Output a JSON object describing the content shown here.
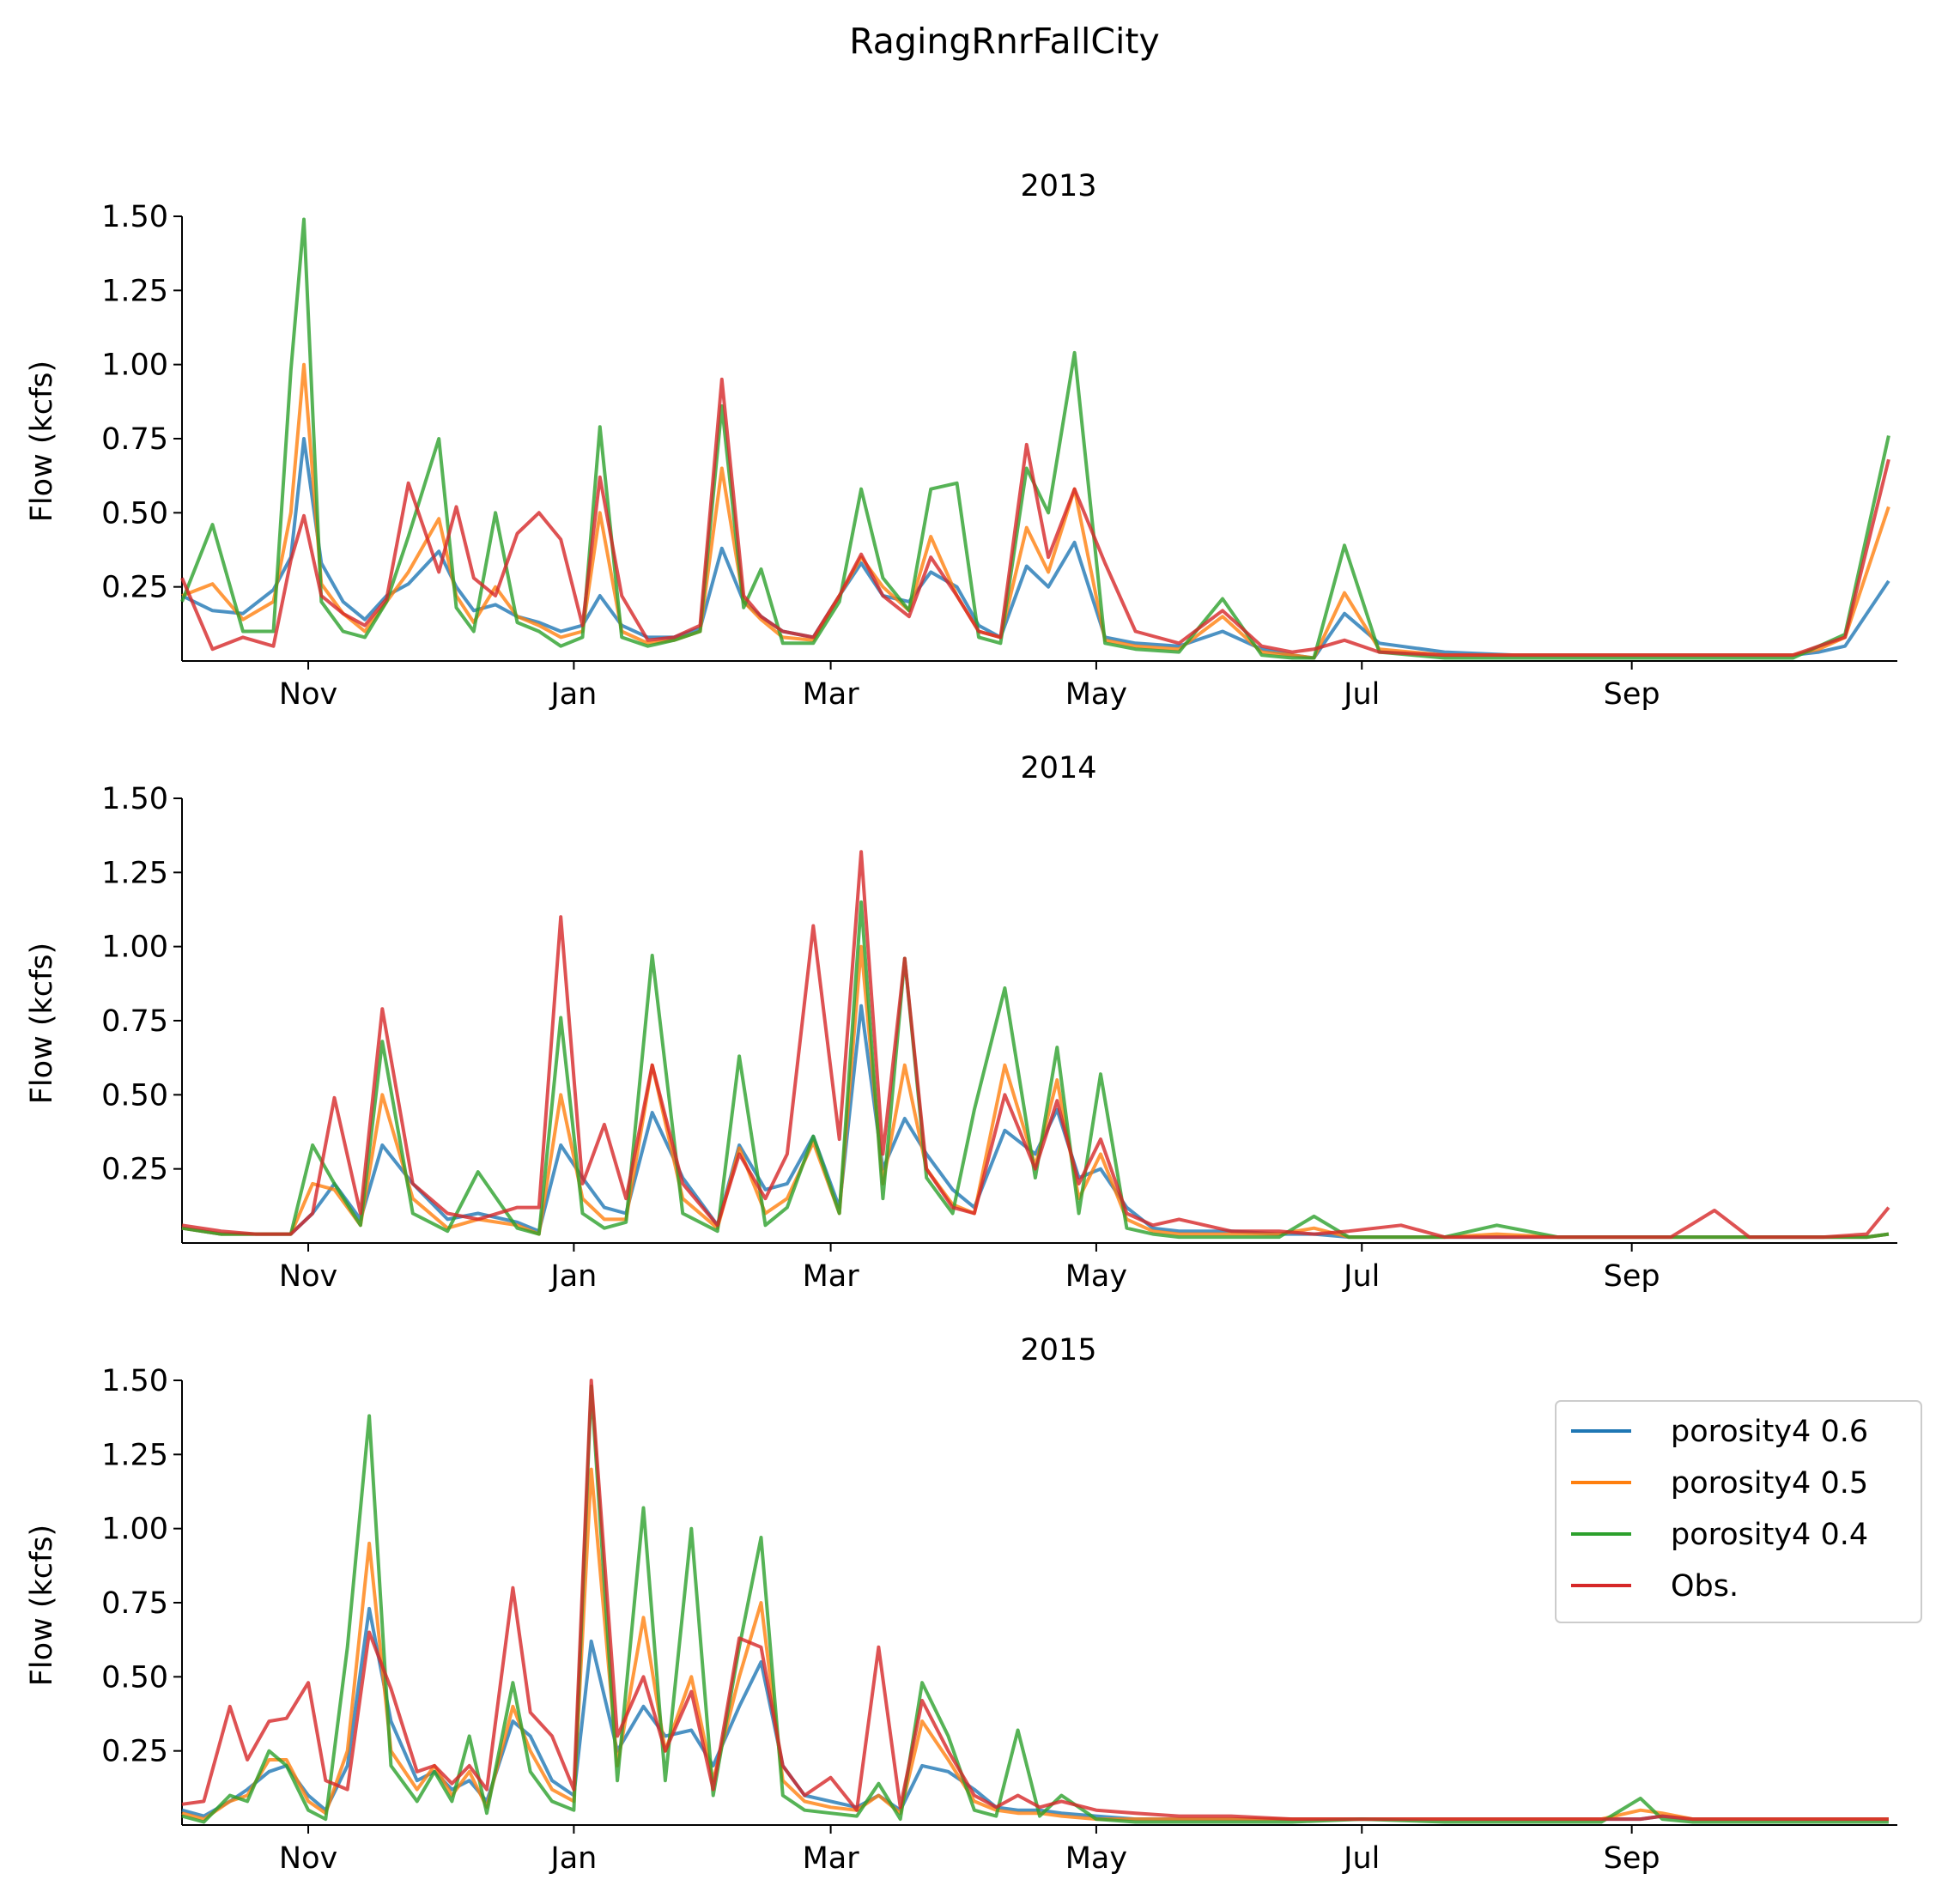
{
  "chart_data": {
    "type": "line",
    "title": "RagingRnrFallCity",
    "ylabel": "Flow (kcfs)",
    "xlabel": "",
    "grid": false,
    "legend": "right",
    "legend_panel": 2,
    "ylim": [
      0.0,
      1.5
    ],
    "yticks": [
      0.25,
      0.5,
      0.75,
      1.0,
      1.25,
      1.5
    ],
    "ytick_labels": [
      "0.25",
      "0.50",
      "0.75",
      "1.00",
      "1.25",
      "1.50"
    ],
    "xlim": [
      "Oct 3",
      "Oct 30"
    ],
    "xtick_labels": [
      "Nov",
      "Jan",
      "Mar",
      "May",
      "Jul",
      "Sep"
    ],
    "series_info": [
      {
        "name": "porosity4 0.6",
        "color": "#1f77b4"
      },
      {
        "name": "porosity4 0.5",
        "color": "#ff7f0e"
      },
      {
        "name": "porosity4 0.4",
        "color": "#2ca02c"
      },
      {
        "name": "Obs.",
        "color": "#d62728"
      }
    ],
    "panels": [
      {
        "title": "2013",
        "x": [
          "Oct 3",
          "Oct 10",
          "Oct 17",
          "Oct 24",
          "Oct 28",
          "Oct 31",
          "Nov 4",
          "Nov 9",
          "Nov 14",
          "Nov 19",
          "Nov 24",
          "Dec 1",
          "Dec 5",
          "Dec 9",
          "Dec 14",
          "Dec 19",
          "Dec 24",
          "Dec 29",
          "Jan 3",
          "Jan 7",
          "Jan 12",
          "Jan 18",
          "Jan 24",
          "Jan 30",
          "Feb 4",
          "Feb 9",
          "Feb 13",
          "Feb 18",
          "Feb 25",
          "Mar 3",
          "Mar 8",
          "Mar 13",
          "Mar 19",
          "Mar 24",
          "Mar 30",
          "Apr 4",
          "Apr 9",
          "Apr 15",
          "Apr 20",
          "Apr 26",
          "May 3",
          "May 10",
          "May 20",
          "May 30",
          "Jun 8",
          "Jun 15",
          "Jun 20",
          "Jun 27",
          "Jul 5",
          "Jul 20",
          "Aug 5",
          "Aug 20",
          "Sep 5",
          "Sep 15",
          "Sep 20",
          "Sep 25",
          "Oct 2",
          "Oct 8",
          "Oct 14",
          "Oct 20",
          "Oct 30"
        ],
        "series": [
          {
            "name": "porosity4 0.6",
            "values": [
              0.22,
              0.17,
              0.16,
              0.24,
              0.35,
              0.75,
              0.33,
              0.2,
              0.14,
              0.22,
              0.26,
              0.37,
              0.25,
              0.17,
              0.19,
              0.15,
              0.13,
              0.1,
              0.12,
              0.22,
              0.12,
              0.08,
              0.08,
              0.11,
              0.38,
              0.2,
              0.15,
              0.1,
              0.08,
              0.22,
              0.33,
              0.22,
              0.2,
              0.3,
              0.25,
              0.12,
              0.08,
              0.32,
              0.25,
              0.4,
              0.08,
              0.06,
              0.05,
              0.1,
              0.04,
              0.02,
              0.01,
              0.16,
              0.06,
              0.03,
              0.02,
              0.02,
              0.02,
              0.02,
              0.02,
              0.02,
              0.02,
              0.02,
              0.03,
              0.05,
              0.27
            ]
          },
          {
            "name": "porosity4 0.5",
            "values": [
              0.22,
              0.26,
              0.14,
              0.2,
              0.5,
              1.0,
              0.26,
              0.16,
              0.1,
              0.2,
              0.3,
              0.48,
              0.22,
              0.13,
              0.25,
              0.15,
              0.12,
              0.08,
              0.1,
              0.5,
              0.1,
              0.06,
              0.07,
              0.1,
              0.65,
              0.2,
              0.14,
              0.08,
              0.07,
              0.22,
              0.35,
              0.25,
              0.17,
              0.42,
              0.22,
              0.1,
              0.08,
              0.45,
              0.3,
              0.58,
              0.07,
              0.05,
              0.04,
              0.15,
              0.03,
              0.02,
              0.01,
              0.23,
              0.04,
              0.02,
              0.02,
              0.02,
              0.02,
              0.02,
              0.02,
              0.02,
              0.02,
              0.02,
              0.04,
              0.08,
              0.52
            ]
          },
          {
            "name": "porosity4 0.4",
            "values": [
              0.2,
              0.46,
              0.1,
              0.1,
              0.98,
              1.49,
              0.2,
              0.1,
              0.08,
              0.2,
              0.42,
              0.75,
              0.18,
              0.1,
              0.5,
              0.13,
              0.1,
              0.05,
              0.08,
              0.79,
              0.08,
              0.05,
              0.07,
              0.1,
              0.86,
              0.18,
              0.31,
              0.06,
              0.06,
              0.2,
              0.58,
              0.28,
              0.17,
              0.58,
              0.6,
              0.08,
              0.06,
              0.65,
              0.5,
              1.04,
              0.06,
              0.04,
              0.03,
              0.21,
              0.02,
              0.01,
              0.01,
              0.39,
              0.03,
              0.01,
              0.01,
              0.01,
              0.01,
              0.01,
              0.01,
              0.01,
              0.01,
              0.01,
              0.05,
              0.09,
              0.76
            ]
          },
          {
            "name": "Obs.",
            "values": [
              0.28,
              0.04,
              0.08,
              0.05,
              0.34,
              0.49,
              0.22,
              0.16,
              0.12,
              0.21,
              0.6,
              0.3,
              0.52,
              0.28,
              0.22,
              0.43,
              0.5,
              0.41,
              0.12,
              0.62,
              0.22,
              0.07,
              0.08,
              0.12,
              0.95,
              0.22,
              0.15,
              0.1,
              0.08,
              0.22,
              0.36,
              0.22,
              0.15,
              0.35,
              0.22,
              0.1,
              0.08,
              0.73,
              0.35,
              0.58,
              0.33,
              0.1,
              0.06,
              0.17,
              0.05,
              0.03,
              0.04,
              0.07,
              0.03,
              0.02,
              0.02,
              0.02,
              0.02,
              0.02,
              0.02,
              0.02,
              0.02,
              0.02,
              0.05,
              0.08,
              0.68
            ]
          }
        ]
      },
      {
        "title": "2014",
        "x": [
          "Oct 3",
          "Oct 12",
          "Oct 20",
          "Oct 28",
          "Nov 2",
          "Nov 7",
          "Nov 13",
          "Nov 18",
          "Nov 25",
          "Dec 3",
          "Dec 10",
          "Dec 19",
          "Dec 24",
          "Dec 29",
          "Jan 3",
          "Jan 8",
          "Jan 13",
          "Jan 19",
          "Jan 26",
          "Feb 3",
          "Feb 8",
          "Feb 14",
          "Feb 19",
          "Feb 25",
          "Mar 3",
          "Mar 8",
          "Mar 13",
          "Mar 18",
          "Mar 23",
          "Mar 29",
          "Apr 3",
          "Apr 10",
          "Apr 17",
          "Apr 22",
          "Apr 27",
          "May 2",
          "May 8",
          "May 14",
          "May 20",
          "Jun 1",
          "Jun 12",
          "Jun 20",
          "Jun 28",
          "Jul 10",
          "Jul 20",
          "Aug 1",
          "Aug 15",
          "Aug 25",
          "Sep 1",
          "Sep 10",
          "Sep 20",
          "Sep 28",
          "Oct 5",
          "Oct 15",
          "Oct 25",
          "Oct 30"
        ],
        "series": [
          {
            "name": "porosity4 0.6",
            "values": [
              0.05,
              0.03,
              0.03,
              0.03,
              0.1,
              0.2,
              0.08,
              0.33,
              0.2,
              0.08,
              0.1,
              0.07,
              0.04,
              0.33,
              0.22,
              0.12,
              0.1,
              0.44,
              0.22,
              0.06,
              0.33,
              0.18,
              0.2,
              0.36,
              0.12,
              0.8,
              0.25,
              0.42,
              0.3,
              0.18,
              0.12,
              0.38,
              0.3,
              0.45,
              0.22,
              0.25,
              0.12,
              0.05,
              0.04,
              0.04,
              0.03,
              0.03,
              0.02,
              0.02,
              0.02,
              0.02,
              0.02,
              0.02,
              0.02,
              0.02,
              0.02,
              0.02,
              0.02,
              0.02,
              0.02,
              0.03
            ]
          },
          {
            "name": "porosity4 0.5",
            "values": [
              0.05,
              0.03,
              0.03,
              0.03,
              0.2,
              0.18,
              0.06,
              0.5,
              0.15,
              0.05,
              0.08,
              0.06,
              0.03,
              0.5,
              0.15,
              0.08,
              0.08,
              0.6,
              0.15,
              0.05,
              0.32,
              0.1,
              0.15,
              0.34,
              0.1,
              1.0,
              0.2,
              0.6,
              0.25,
              0.13,
              0.1,
              0.6,
              0.26,
              0.55,
              0.15,
              0.3,
              0.08,
              0.04,
              0.03,
              0.03,
              0.03,
              0.05,
              0.02,
              0.02,
              0.02,
              0.03,
              0.02,
              0.02,
              0.02,
              0.02,
              0.02,
              0.02,
              0.02,
              0.02,
              0.02,
              0.03
            ]
          },
          {
            "name": "porosity4 0.4",
            "values": [
              0.05,
              0.03,
              0.03,
              0.03,
              0.33,
              0.2,
              0.06,
              0.68,
              0.1,
              0.04,
              0.24,
              0.05,
              0.03,
              0.76,
              0.1,
              0.05,
              0.07,
              0.97,
              0.1,
              0.04,
              0.63,
              0.06,
              0.12,
              0.36,
              0.1,
              1.15,
              0.15,
              0.96,
              0.22,
              0.1,
              0.45,
              0.86,
              0.22,
              0.66,
              0.1,
              0.57,
              0.05,
              0.03,
              0.02,
              0.02,
              0.02,
              0.09,
              0.02,
              0.02,
              0.02,
              0.06,
              0.02,
              0.02,
              0.02,
              0.02,
              0.02,
              0.02,
              0.02,
              0.02,
              0.02,
              0.03
            ]
          },
          {
            "name": "Obs.",
            "values": [
              0.06,
              0.04,
              0.03,
              0.03,
              0.1,
              0.49,
              0.1,
              0.79,
              0.2,
              0.1,
              0.08,
              0.12,
              0.12,
              1.1,
              0.2,
              0.4,
              0.15,
              0.6,
              0.2,
              0.06,
              0.3,
              0.15,
              0.3,
              1.07,
              0.35,
              1.32,
              0.3,
              0.96,
              0.25,
              0.12,
              0.1,
              0.5,
              0.25,
              0.48,
              0.2,
              0.35,
              0.1,
              0.06,
              0.08,
              0.04,
              0.04,
              0.03,
              0.04,
              0.06,
              0.02,
              0.02,
              0.02,
              0.02,
              0.02,
              0.02,
              0.11,
              0.02,
              0.02,
              0.02,
              0.03,
              0.12
            ]
          }
        ]
      },
      {
        "title": "2015",
        "x": [
          "Oct 3",
          "Oct 8",
          "Oct 14",
          "Oct 18",
          "Oct 23",
          "Oct 27",
          "Nov 1",
          "Nov 5",
          "Nov 10",
          "Nov 15",
          "Nov 20",
          "Nov 26",
          "Nov 30",
          "Dec 4",
          "Dec 8",
          "Dec 12",
          "Dec 18",
          "Dec 22",
          "Dec 27",
          "Jan 1",
          "Jan 5",
          "Jan 11",
          "Jan 17",
          "Jan 22",
          "Jan 28",
          "Feb 2",
          "Feb 8",
          "Feb 13",
          "Feb 18",
          "Feb 23",
          "Mar 1",
          "Mar 7",
          "Mar 12",
          "Mar 17",
          "Mar 22",
          "Mar 28",
          "Apr 3",
          "Apr 8",
          "Apr 13",
          "Apr 18",
          "Apr 23",
          "May 1",
          "May 10",
          "May 20",
          "Jun 1",
          "Jun 15",
          "Jul 1",
          "Jul 20",
          "Aug 10",
          "Aug 25",
          "Sep 3",
          "Sep 8",
          "Sep 15",
          "Sep 22",
          "Sep 30",
          "Oct 10",
          "Oct 20",
          "Oct 30"
        ],
        "series": [
          {
            "name": "porosity4 0.6",
            "values": [
              0.05,
              0.03,
              0.08,
              0.12,
              0.18,
              0.2,
              0.1,
              0.05,
              0.2,
              0.73,
              0.35,
              0.15,
              0.18,
              0.12,
              0.15,
              0.08,
              0.35,
              0.3,
              0.15,
              0.1,
              0.62,
              0.25,
              0.4,
              0.3,
              0.32,
              0.2,
              0.4,
              0.55,
              0.2,
              0.1,
              0.08,
              0.06,
              0.1,
              0.05,
              0.2,
              0.18,
              0.12,
              0.06,
              0.05,
              0.05,
              0.04,
              0.03,
              0.02,
              0.02,
              0.02,
              0.02,
              0.02,
              0.02,
              0.02,
              0.02,
              0.02,
              0.03,
              0.02,
              0.02,
              0.02,
              0.02,
              0.02,
              0.02
            ]
          },
          {
            "name": "porosity4 0.5",
            "values": [
              0.04,
              0.02,
              0.08,
              0.1,
              0.22,
              0.22,
              0.08,
              0.04,
              0.25,
              0.95,
              0.25,
              0.12,
              0.2,
              0.1,
              0.18,
              0.06,
              0.4,
              0.25,
              0.12,
              0.08,
              1.2,
              0.2,
              0.7,
              0.25,
              0.5,
              0.15,
              0.5,
              0.75,
              0.15,
              0.08,
              0.06,
              0.05,
              0.1,
              0.04,
              0.35,
              0.22,
              0.08,
              0.05,
              0.04,
              0.04,
              0.03,
              0.02,
              0.02,
              0.02,
              0.02,
              0.02,
              0.02,
              0.02,
              0.02,
              0.02,
              0.05,
              0.04,
              0.02,
              0.02,
              0.02,
              0.02,
              0.02,
              0.02
            ]
          },
          {
            "name": "porosity4 0.4",
            "values": [
              0.03,
              0.01,
              0.1,
              0.08,
              0.25,
              0.2,
              0.05,
              0.02,
              0.6,
              1.38,
              0.2,
              0.08,
              0.18,
              0.08,
              0.3,
              0.04,
              0.48,
              0.18,
              0.08,
              0.05,
              1.48,
              0.15,
              1.07,
              0.15,
              1.0,
              0.1,
              0.6,
              0.97,
              0.1,
              0.05,
              0.04,
              0.03,
              0.14,
              0.02,
              0.48,
              0.3,
              0.05,
              0.03,
              0.32,
              0.03,
              0.1,
              0.02,
              0.01,
              0.01,
              0.01,
              0.01,
              0.02,
              0.01,
              0.01,
              0.01,
              0.09,
              0.02,
              0.01,
              0.01,
              0.01,
              0.01,
              0.01,
              0.01
            ]
          },
          {
            "name": "Obs.",
            "values": [
              0.07,
              0.08,
              0.4,
              0.22,
              0.35,
              0.36,
              0.48,
              0.15,
              0.12,
              0.65,
              0.46,
              0.18,
              0.2,
              0.14,
              0.2,
              0.12,
              0.8,
              0.38,
              0.3,
              0.12,
              1.5,
              0.3,
              0.5,
              0.25,
              0.45,
              0.12,
              0.63,
              0.6,
              0.2,
              0.1,
              0.16,
              0.05,
              0.6,
              0.06,
              0.42,
              0.25,
              0.1,
              0.06,
              0.1,
              0.06,
              0.08,
              0.05,
              0.04,
              0.03,
              0.03,
              0.02,
              0.02,
              0.02,
              0.02,
              0.02,
              0.02,
              0.03,
              0.02,
              0.02,
              0.02,
              0.02,
              0.02,
              0.02
            ]
          }
        ]
      }
    ]
  }
}
